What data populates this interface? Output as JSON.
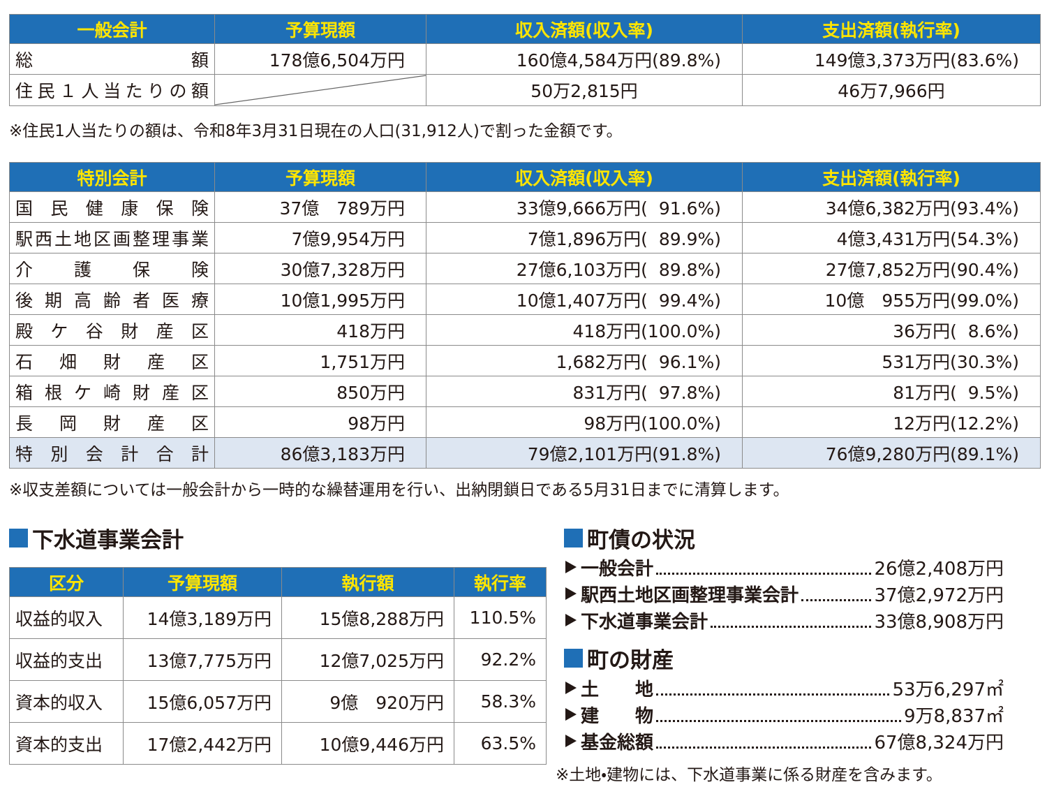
{
  "general": {
    "header": [
      "一般会計",
      "予算現額",
      "収入済額(収入率)",
      "支出済額(執行率)"
    ],
    "rows": [
      {
        "label": "総額",
        "cells": [
          "178億6,504万円",
          "160億4,584万円(89.8%)",
          "149億3,373万円(83.6%)"
        ]
      },
      {
        "label": "住民１人当たりの額",
        "cells": [
          "50万2,815円",
          "46万7,966円"
        ]
      }
    ],
    "note": "※住民1人当たりの額は、令和8年3月31日現在の人口(31,912人)で割った金額です。"
  },
  "special": {
    "header": [
      "特別会計",
      "予算現額",
      "収入済額(収入率)",
      "支出済額(執行率)"
    ],
    "rows": [
      {
        "label": "国民健康保険",
        "cells": [
          "37億　789万円",
          "33億9,666万円(  91.6%)",
          "34億6,382万円(93.4%)"
        ]
      },
      {
        "label": "駅西土地区画整理事業",
        "cells": [
          "7億9,954万円",
          "7億1,896万円(  89.9%)",
          "4億3,431万円(54.3%)"
        ]
      },
      {
        "label": "介護保険",
        "cells": [
          "30億7,328万円",
          "27億6,103万円(  89.8%)",
          "27億7,852万円(90.4%)"
        ]
      },
      {
        "label": "後期高齢者医療",
        "cells": [
          "10億1,995万円",
          "10億1,407万円(  99.4%)",
          "10億　955万円(99.0%)"
        ]
      },
      {
        "label": "殿ケ谷財産区",
        "cells": [
          "418万円",
          "418万円(100.0%)",
          "36万円(  8.6%)"
        ]
      },
      {
        "label": "石畑財産区",
        "cells": [
          "1,751万円",
          "1,682万円(  96.1%)",
          "531万円(30.3%)"
        ]
      },
      {
        "label": "箱根ケ崎財産区",
        "cells": [
          "850万円",
          "831万円(  97.8%)",
          "81万円(  9.5%)"
        ]
      },
      {
        "label": "長岡財産区",
        "cells": [
          "98万円",
          "98万円(100.0%)",
          "12万円(12.2%)"
        ]
      },
      {
        "label": "特別会計合計",
        "cells": [
          "86億3,183万円",
          "79億2,101万円(91.8%)",
          "76億9,280万円(89.1%)"
        ]
      }
    ],
    "note": "※収支差額については一般会計から一時的な繰替運用を行い、出納閉鎖日である5月31日までに清算します。"
  },
  "sewer": {
    "title": "下水道事業会計",
    "header": [
      "区分",
      "予算現額",
      "執行額",
      "執行率"
    ],
    "rows": [
      [
        "収益的収入",
        "14億3,189万円",
        "15億8,288万円",
        "110.5%"
      ],
      [
        "収益的支出",
        "13億7,775万円",
        "12億7,025万円",
        "92.2%"
      ],
      [
        "資本的収入",
        "15億6,057万円",
        "9億　920万円",
        "58.3%"
      ],
      [
        "資本的支出",
        "17億2,442万円",
        "10億9,446万円",
        "63.5%"
      ]
    ]
  },
  "debt": {
    "title": "町債の状況",
    "items": [
      {
        "label": "一般会計",
        "value": "26億2,408万円"
      },
      {
        "label": "駅西土地区画整理事業会計",
        "value": "37億2,972万円"
      },
      {
        "label": "下水道事業会計",
        "value": "33億8,908万円"
      }
    ]
  },
  "property": {
    "title": "町の財産",
    "items": [
      {
        "label": "土地",
        "value": "53万6,297㎡"
      },
      {
        "label": "建物",
        "value": "9万8,837㎡"
      },
      {
        "label": "基金総額",
        "value": "67億8,324万円"
      }
    ],
    "note": "※土地・建物には、下水道事業に係る財産を含みます。"
  }
}
